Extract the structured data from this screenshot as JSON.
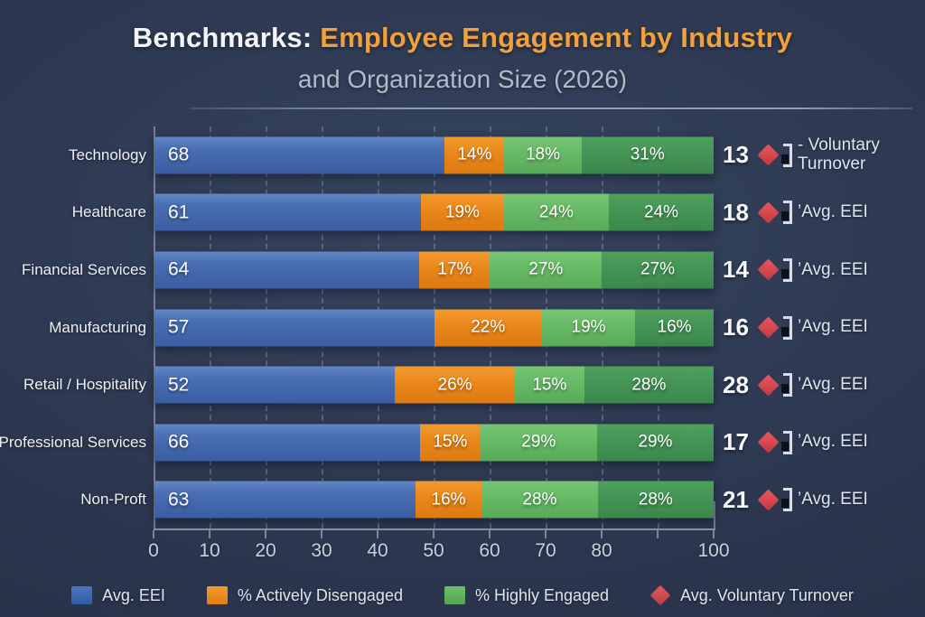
{
  "title": {
    "lead": "Benchmarks:",
    "highlight": " Employee Engagement by Industry",
    "subtitle": "and Organization Size (2026)"
  },
  "axis": {
    "ticks": [
      "0",
      "10",
      "20",
      "30",
      "40",
      "50",
      "60",
      "70",
      "80",
      "",
      "100"
    ]
  },
  "rows": [
    {
      "label": "Technology",
      "eei": 68,
      "disengaged": 14,
      "engaged_light": 18,
      "engaged_dark": 31,
      "turnover": 13,
      "note": "- Voluntary Turnover",
      "note_wrap": true
    },
    {
      "label": "Healthcare",
      "eei": 61,
      "disengaged": 19,
      "engaged_light": 24,
      "engaged_dark": 24,
      "turnover": 18,
      "note": "’Avg. EEI",
      "note_wrap": false
    },
    {
      "label": "Financial Services",
      "eei": 64,
      "disengaged": 17,
      "engaged_light": 27,
      "engaged_dark": 27,
      "turnover": 14,
      "note": "’Avg. EEI",
      "note_wrap": false
    },
    {
      "label": "Manufacturing",
      "eei": 57,
      "disengaged": 22,
      "engaged_light": 19,
      "engaged_dark": 16,
      "turnover": 16,
      "note": "’Avg. EEI",
      "note_wrap": false
    },
    {
      "label": "Retail / Hospitality",
      "eei": 52,
      "disengaged": 26,
      "engaged_light": 15,
      "engaged_dark": 28,
      "turnover": 28,
      "note": "’Avg. EEI",
      "note_wrap": false
    },
    {
      "label": "Professional Services",
      "eei": 66,
      "disengaged": 15,
      "engaged_light": 29,
      "engaged_dark": 29,
      "turnover": 17,
      "note": "’Avg. EEI",
      "note_wrap": false
    },
    {
      "label": "Non-Proft",
      "eei": 63,
      "disengaged": 16,
      "engaged_light": 28,
      "engaged_dark": 28,
      "turnover": 21,
      "note": "’Avg. EEI",
      "note_wrap": false
    }
  ],
  "legend": {
    "items": [
      {
        "label": "Avg. EEI",
        "swatch": "blue-square"
      },
      {
        "label": "% Actively Disengaged",
        "swatch": "orange-square"
      },
      {
        "label": "% Highly Engaged",
        "swatch": "green-square"
      },
      {
        "label": "Avg. Voluntary Turnover",
        "swatch": "red-diamond"
      }
    ]
  },
  "colors": {
    "avg_eei_blue": "#4468ae",
    "actively_disengaged_orange": "#e8871d",
    "highly_engaged_light_green": "#66b765",
    "highly_engaged_dark_green": "#42935a",
    "voluntary_turnover_red": "#d94a50",
    "title_highlight_orange": "#f0a03c",
    "background_navy": "#2b3650",
    "subtitle_gray": "#b3bac7"
  },
  "chart_data": {
    "type": "bar",
    "orientation": "horizontal-stacked",
    "title": "Benchmarks: Employee Engagement by Industry and Organization Size (2026)",
    "categories": [
      "Technology",
      "Healthcare",
      "Financial Services",
      "Manufacturing",
      "Retail / Hospitality",
      "Professional Services",
      "Non-Proft"
    ],
    "series": [
      {
        "name": "Avg. EEI",
        "values": [
          68,
          61,
          64,
          57,
          52,
          66,
          63
        ]
      },
      {
        "name": "% Actively Disengaged",
        "values": [
          14,
          19,
          17,
          22,
          26,
          15,
          16
        ]
      },
      {
        "name": "% Highly Engaged (light segment)",
        "values": [
          18,
          24,
          27,
          19,
          15,
          29,
          28
        ]
      },
      {
        "name": "% Highly Engaged (dark segment)",
        "values": [
          31,
          24,
          27,
          16,
          28,
          29,
          28
        ]
      },
      {
        "name": "Avg. Voluntary Turnover",
        "values": [
          13,
          18,
          14,
          16,
          28,
          17,
          21
        ]
      }
    ],
    "x_ticks": [
      0,
      10,
      20,
      30,
      40,
      50,
      60,
      70,
      80,
      100
    ],
    "xlim": [
      0,
      100
    ],
    "grid": "vertical-dashed",
    "legend_position": "bottom",
    "annotations": [
      "Each row has a red diamond marker with a number at right; Technology row labeled '- Voluntary Turnover', all other rows labeled 'Avg. EEI'"
    ]
  }
}
